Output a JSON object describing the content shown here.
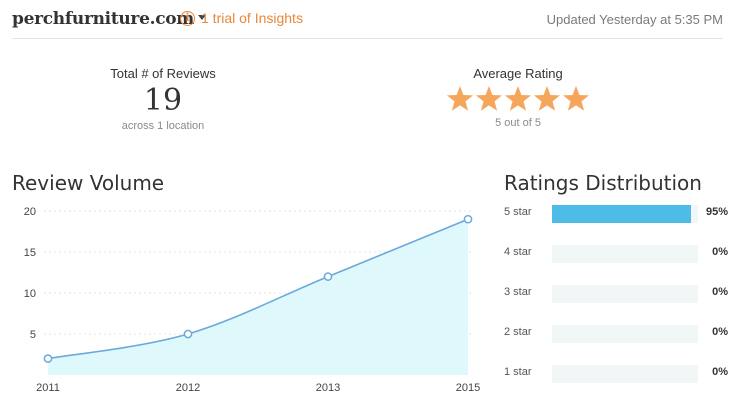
{
  "header": {
    "site_name": "perchfurniture.com",
    "trial_icon": "i",
    "trial_label": "1 trial of Insights",
    "updated": "Updated Yesterday at 5:35 PM"
  },
  "stats": {
    "total_reviews": {
      "label": "Total # of Reviews",
      "value": "19",
      "sub": "across 1 location"
    },
    "average_rating": {
      "label": "Average Rating",
      "value": 5,
      "max": 5,
      "sub": "5 out of 5"
    }
  },
  "review_volume": {
    "title": "Review Volume",
    "chart_data": {
      "type": "area",
      "x": [
        "2011",
        "2012",
        "2013",
        "2015"
      ],
      "values": [
        2,
        5,
        12,
        19
      ],
      "ylim": [
        0,
        20
      ],
      "yticks": [
        "5",
        "10",
        "15",
        "20"
      ],
      "grid": true
    }
  },
  "ratings_distribution": {
    "title": "Ratings Distribution",
    "rows": [
      {
        "label": "5 star",
        "pct": "95%",
        "fraction": 0.95
      },
      {
        "label": "4 star",
        "pct": "0%",
        "fraction": 0
      },
      {
        "label": "3 star",
        "pct": "0%",
        "fraction": 0
      },
      {
        "label": "2 star",
        "pct": "0%",
        "fraction": 0
      },
      {
        "label": "1 star",
        "pct": "0%",
        "fraction": 0
      }
    ]
  },
  "colors": {
    "accent": "#e8883a",
    "star": "#f5a65b",
    "line": "#6aa9dc",
    "area": "#dff8fc",
    "bar": "#4dbde8"
  }
}
